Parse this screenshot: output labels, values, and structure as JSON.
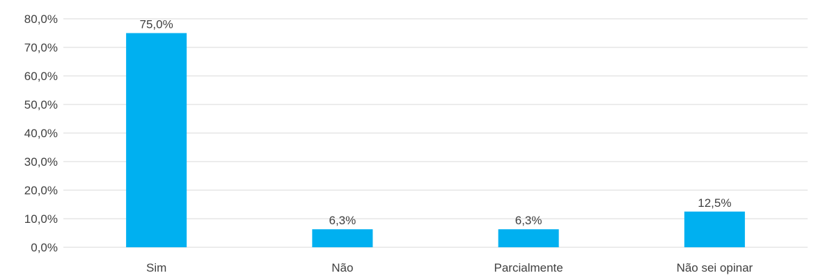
{
  "chart_data": {
    "type": "bar",
    "title": "",
    "xlabel": "",
    "ylabel": "",
    "categories": [
      "Sim",
      "Não",
      "Parcialmente",
      "Não sei opinar"
    ],
    "values": [
      75.0,
      6.3,
      6.3,
      12.5
    ],
    "value_labels": [
      "75,0%",
      "6,3%",
      "6,3%",
      "12,5%"
    ],
    "ylim": [
      0,
      80
    ],
    "yticks": [
      0,
      10,
      20,
      30,
      40,
      50,
      60,
      70,
      80
    ],
    "ytick_labels": [
      "0,0%",
      "10,0%",
      "20,0%",
      "30,0%",
      "40,0%",
      "50,0%",
      "60,0%",
      "70,0%",
      "80,0%"
    ],
    "grid": true,
    "legend": "none",
    "colors": {
      "bar": "#00B0F0",
      "grid": "#D9D9D9",
      "text": "#404040"
    }
  }
}
